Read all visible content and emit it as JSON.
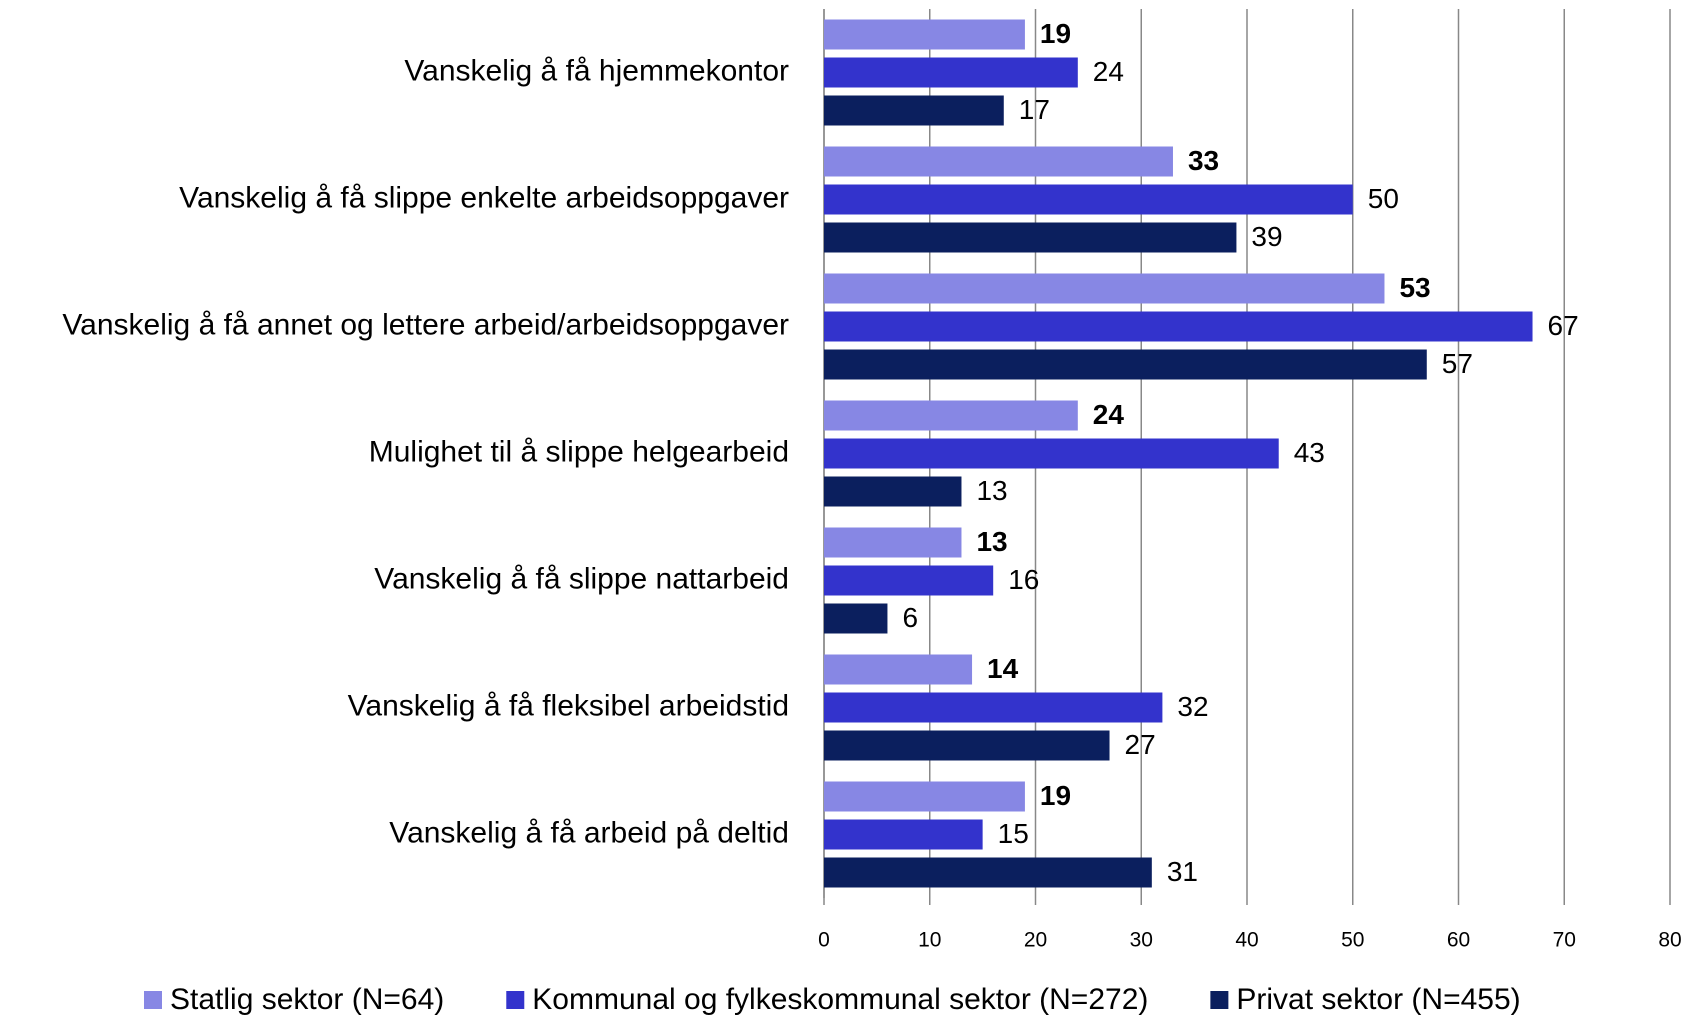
{
  "chart_data": {
    "type": "bar",
    "orientation": "horizontal",
    "categories": [
      "Vanskelig å få hjemmekontor",
      "Vanskelig å få slippe enkelte arbeidsoppgaver",
      "Vanskelig å få annet og lettere arbeid/arbeidsoppgaver",
      "Mulighet til å slippe helgearbeid",
      "Vanskelig å få slippe nattarbeid",
      "Vanskelig å få fleksibel arbeidstid",
      "Vanskelig å få  arbeid på deltid"
    ],
    "series": [
      {
        "name": "Statlig sektor (N=64)",
        "color": "#8787e4",
        "values": [
          19,
          33,
          53,
          24,
          13,
          14,
          19
        ]
      },
      {
        "name": "Kommunal og fylkeskommunal sektor (N=272)",
        "color": "#3333cc",
        "values": [
          24,
          50,
          67,
          43,
          16,
          32,
          15
        ]
      },
      {
        "name": "Privat sektor (N=455)",
        "color": "#0b1f5e",
        "values": [
          17,
          39,
          57,
          13,
          6,
          27,
          31
        ]
      }
    ],
    "xlim": [
      0,
      80
    ],
    "xticks": [
      0,
      10,
      20,
      30,
      40,
      50,
      60,
      70,
      80
    ],
    "grid": true,
    "legend": "bottom"
  }
}
